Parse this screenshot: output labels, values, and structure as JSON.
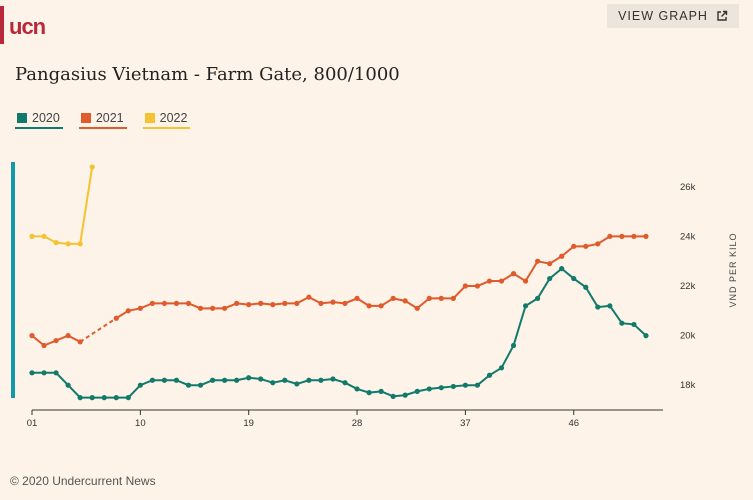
{
  "brand": {
    "logo_text": "ucn",
    "color": "#b8283a"
  },
  "header": {
    "view_graph_label": "VIEW GRAPH",
    "view_graph_icon": "external-link-icon"
  },
  "chart_data": {
    "type": "line",
    "title": "Pangasius Vietnam - Farm Gate, 800/1000",
    "xlabel": "",
    "ylabel": "VND PER KILO",
    "x_ticks": [
      "01",
      "10",
      "19",
      "28",
      "37",
      "46"
    ],
    "x_tick_values": [
      1,
      10,
      19,
      28,
      37,
      46
    ],
    "y_ticks": [
      "18k",
      "20k",
      "22k",
      "24k",
      "26k"
    ],
    "y_tick_values": [
      18000,
      20000,
      22000,
      24000,
      26000
    ],
    "xlim": [
      1,
      53
    ],
    "ylim": [
      17000,
      27000
    ],
    "series": [
      {
        "name": "2020",
        "color": "#127a6a",
        "values": [
          18500,
          18500,
          18500,
          18000,
          17500,
          17500,
          17500,
          17500,
          17500,
          18000,
          18200,
          18200,
          18200,
          18000,
          18000,
          18200,
          18200,
          18200,
          18300,
          18250,
          18100,
          18200,
          18050,
          18200,
          18200,
          18250,
          18100,
          17850,
          17700,
          17750,
          17550,
          17600,
          17750,
          17850,
          17900,
          17950,
          18000,
          18000,
          18400,
          18700,
          19600,
          21200,
          21500,
          22300,
          22700,
          22300,
          21950,
          21150,
          21200,
          20500,
          20450,
          20000
        ]
      },
      {
        "name": "2021",
        "color": "#e05a2b",
        "values": [
          20000,
          19600,
          19800,
          20000,
          19750,
          null,
          null,
          20700,
          21000,
          21100,
          21300,
          21300,
          21300,
          21300,
          21100,
          21100,
          21100,
          21300,
          21250,
          21300,
          21250,
          21300,
          21300,
          21550,
          21300,
          21350,
          21300,
          21500,
          21200,
          21200,
          21500,
          21400,
          21100,
          21500,
          21500,
          21500,
          22000,
          22000,
          22200,
          22200,
          22500,
          22200,
          23000,
          22900,
          23200,
          23600,
          23600,
          23700,
          24000,
          24000,
          24000,
          24000
        ],
        "dashed_gap": [
          5,
          8
        ]
      },
      {
        "name": "2022",
        "color": "#f5c332",
        "values": [
          24000,
          24000,
          23750,
          23700,
          23700,
          26800
        ]
      }
    ]
  },
  "footer": {
    "copyright": "© 2020 Undercurrent News"
  }
}
